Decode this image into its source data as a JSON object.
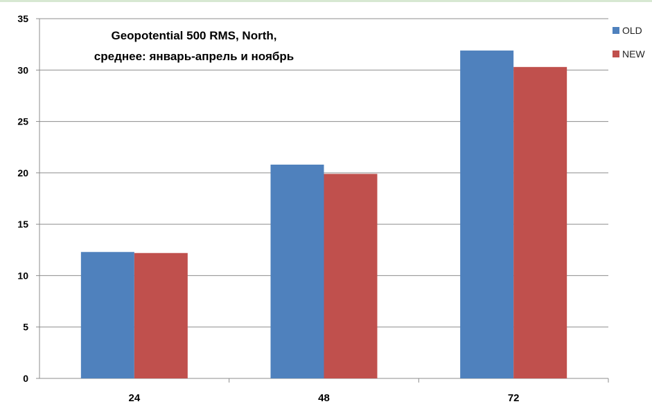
{
  "chart_data": {
    "type": "bar",
    "title": [
      "Geopotential 500 RMS, North,",
      "среднее: январь-апрель и ноябрь"
    ],
    "categories": [
      "24",
      "48",
      "72"
    ],
    "series": [
      {
        "name": "OLD",
        "values": [
          12.3,
          20.8,
          31.9
        ],
        "color": "#4f81bd"
      },
      {
        "name": "NEW",
        "values": [
          12.2,
          19.9,
          30.3
        ],
        "color": "#c0504d"
      }
    ],
    "ylim": [
      0,
      35
    ],
    "yticks": [
      0,
      5,
      10,
      15,
      20,
      25,
      30,
      35
    ],
    "grid": true,
    "legend_position": "top-right",
    "xlabel": "",
    "ylabel": ""
  }
}
